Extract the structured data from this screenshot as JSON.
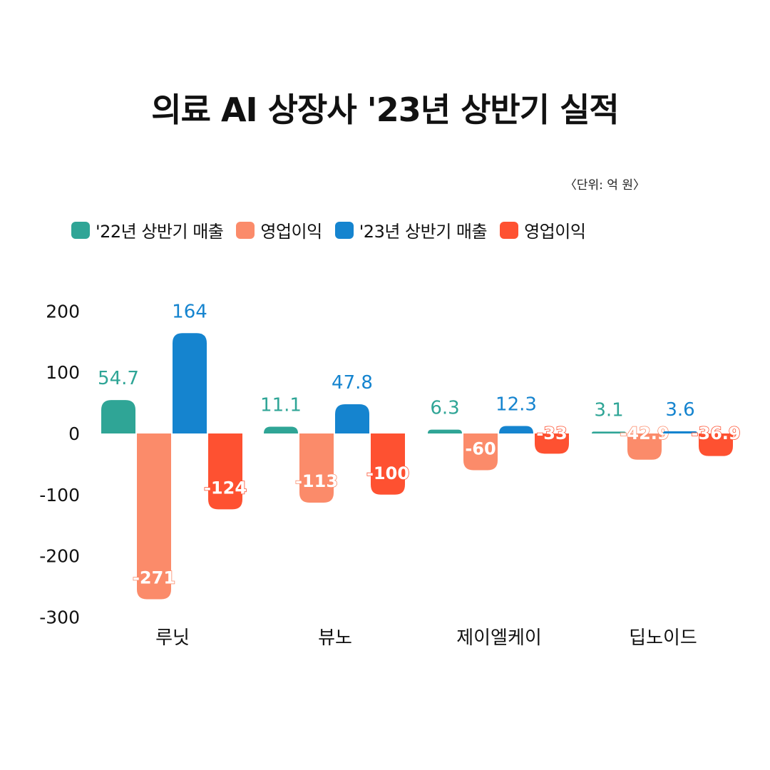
{
  "title": "의료 AI 상장사 '23년 상반기 실적",
  "unit": "〈단위: 억 원〉",
  "legend": [
    {
      "label": "'22년 상반기 매출",
      "color": "#2fa596"
    },
    {
      "label": "영업이익",
      "color": "#fb8b6a"
    },
    {
      "label": "'23년 상반기 매출",
      "color": "#1584cf"
    },
    {
      "label": "영업이익",
      "color": "#fe5131"
    }
  ],
  "chart_data": {
    "type": "bar",
    "title": "의료 AI 상장사 '23년 상반기 실적",
    "ylabel": "억 원",
    "ylim": [
      -300,
      200
    ],
    "yticks": [
      200,
      100,
      0,
      -100,
      -200,
      -300
    ],
    "ytick_labels": [
      "200",
      "100",
      "0",
      "-100",
      "-200",
      "-300"
    ],
    "categories": [
      "루닛",
      "뷰노",
      "제이엘케이",
      "딥노이드"
    ],
    "series": [
      {
        "name": "'22년 상반기 매출",
        "color": "#2fa596",
        "values": [
          54.7,
          11.1,
          6.3,
          3.1
        ],
        "labels": [
          "54.7",
          "11.1",
          "6.3",
          "3.1"
        ]
      },
      {
        "name": "영업이익",
        "color": "#fb8b6a",
        "values": [
          -271,
          -113,
          -60,
          -42.9
        ],
        "labels": [
          "-271",
          "-113",
          "-60",
          "-42.9"
        ]
      },
      {
        "name": "'23년 상반기 매출",
        "color": "#1584cf",
        "values": [
          164,
          47.8,
          12.3,
          3.6
        ],
        "labels": [
          "164",
          "47.8",
          "12.3",
          "3.6"
        ]
      },
      {
        "name": "영업이익",
        "color": "#fe5131",
        "values": [
          -124,
          -100,
          -33,
          -36.9
        ],
        "labels": [
          "-124",
          "-100",
          "-33",
          "-36.9"
        ]
      }
    ]
  }
}
